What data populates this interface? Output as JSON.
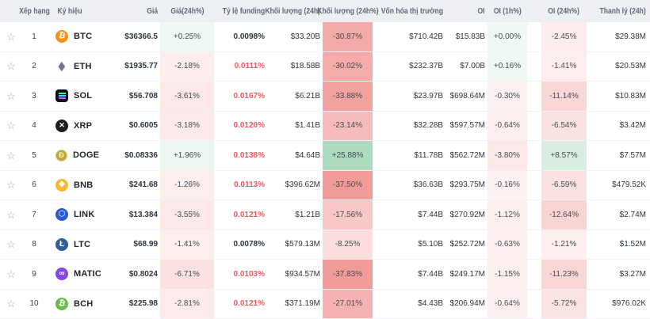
{
  "colors": {
    "header_bg": "#edeff3",
    "header_text": "#5f6a76",
    "body_text": "#2f353d",
    "positive_heat_base": "#229e53",
    "negative_heat_base": "#e53935",
    "funding_alert_text": "#f5565e",
    "row_divider": "#f2f3f6",
    "star_icon": "#a3aab4"
  },
  "funding_alert_threshold": 0.01,
  "header": {
    "columns": [
      {
        "label": ""
      },
      {
        "label": "Xếp hạng"
      },
      {
        "label": "Ký hiệu"
      },
      {
        "label": "Giá"
      },
      {
        "label": "Giá(24h%)"
      },
      {
        "label": "Tỷ lệ funding"
      },
      {
        "label": "Khối lượng (24h)"
      },
      {
        "label": "Khối lượng (24h%)"
      },
      {
        "label": "Vốn hóa thị trường"
      },
      {
        "label": "OI"
      },
      {
        "label": "OI (1h%)"
      },
      {
        "label": ""
      },
      {
        "label": "OI (24h%)"
      },
      {
        "label": "Thanh lý (24h)"
      }
    ]
  },
  "rows": [
    {
      "rank": "1",
      "name": "BTC",
      "icon": {
        "style": "circle",
        "bg": "#f7931a",
        "glyph": "₿",
        "tilt": true
      },
      "price": "$36366.5",
      "chg24": "+0.25%",
      "funding": "0.0098%",
      "vol": "$33.20B",
      "volchg": "-30.87%",
      "mcap": "$710.42B",
      "oi": "$15.83B",
      "oi1h": "+0.00%",
      "oi24": "-2.45%",
      "liq": "$29.38M"
    },
    {
      "rank": "2",
      "name": "ETH",
      "icon": {
        "style": "eth",
        "bg": "transparent",
        "glyph": "◆"
      },
      "price": "$1935.77",
      "chg24": "-2.18%",
      "funding": "0.0111%",
      "vol": "$18.58B",
      "volchg": "-30.02%",
      "mcap": "$232.37B",
      "oi": "$7.00B",
      "oi1h": "+0.16%",
      "oi24": "-1.41%",
      "liq": "$20.53M"
    },
    {
      "rank": "3",
      "name": "SOL",
      "icon": {
        "style": "sol",
        "bg": "#0c0e13",
        "glyph": "="
      },
      "price": "$56.708",
      "chg24": "-3.61%",
      "funding": "0.0167%",
      "vol": "$6.21B",
      "volchg": "-33.88%",
      "mcap": "$23.97B",
      "oi": "$698.64M",
      "oi1h": "-0.30%",
      "oi24": "-11.14%",
      "liq": "$10.83M"
    },
    {
      "rank": "4",
      "name": "XRP",
      "icon": {
        "style": "xrp",
        "bg": "#1c1c21",
        "glyph": "✕"
      },
      "price": "$0.6005",
      "chg24": "-3.18%",
      "funding": "0.0120%",
      "vol": "$1.41B",
      "volchg": "-23.14%",
      "mcap": "$32.28B",
      "oi": "$597.57M",
      "oi1h": "-0.64%",
      "oi24": "-6.54%",
      "liq": "$3.42M"
    },
    {
      "rank": "5",
      "name": "DOGE",
      "icon": {
        "style": "doge",
        "bg": "#c2a633",
        "glyph": "Ð"
      },
      "price": "$0.08336",
      "chg24": "+1.96%",
      "funding": "0.0138%",
      "vol": "$4.64B",
      "volchg": "+25.88%",
      "mcap": "$11.78B",
      "oi": "$562.72M",
      "oi1h": "-3.80%",
      "oi24": "+8.57%",
      "liq": "$7.57M"
    },
    {
      "rank": "6",
      "name": "BNB",
      "icon": {
        "style": "circle",
        "bg": "#f3ba2f",
        "glyph": "❖"
      },
      "price": "$241.68",
      "chg24": "-1.26%",
      "funding": "0.0113%",
      "vol": "$396.62M",
      "volchg": "-37.50%",
      "mcap": "$36.63B",
      "oi": "$293.75M",
      "oi1h": "-0.16%",
      "oi24": "-6.59%",
      "liq": "$479.52K"
    },
    {
      "rank": "7",
      "name": "LINK",
      "icon": {
        "style": "link",
        "bg": "#2a5ada",
        "glyph": "⬡"
      },
      "price": "$13.384",
      "chg24": "-3.55%",
      "funding": "0.0121%",
      "vol": "$1.21B",
      "volchg": "-17.56%",
      "mcap": "$7.44B",
      "oi": "$270.92M",
      "oi1h": "-1.12%",
      "oi24": "-12.64%",
      "liq": "$2.74M"
    },
    {
      "rank": "8",
      "name": "LTC",
      "icon": {
        "style": "circle",
        "bg": "#345d9d",
        "glyph": "Ł"
      },
      "price": "$68.99",
      "chg24": "-1.41%",
      "funding": "0.0078%",
      "vol": "$579.13M",
      "volchg": "-8.25%",
      "mcap": "$5.10B",
      "oi": "$252.72M",
      "oi1h": "-0.63%",
      "oi24": "-1.21%",
      "liq": "$1.52M"
    },
    {
      "rank": "9",
      "name": "MATIC",
      "icon": {
        "style": "circle",
        "bg": "#8247e5",
        "glyph": "∞"
      },
      "price": "$0.8024",
      "chg24": "-6.71%",
      "funding": "0.0103%",
      "vol": "$934.57M",
      "volchg": "-37.83%",
      "mcap": "$7.44B",
      "oi": "$249.17M",
      "oi1h": "-1.15%",
      "oi24": "-11.23%",
      "liq": "$3.27M"
    },
    {
      "rank": "10",
      "name": "BCH",
      "icon": {
        "style": "circle",
        "bg": "#68bd49",
        "glyph": "₿",
        "tilt": true
      },
      "price": "$225.98",
      "chg24": "-2.81%",
      "funding": "0.0121%",
      "vol": "$371.19M",
      "volchg": "-27.01%",
      "mcap": "$4.43B",
      "oi": "$206.94M",
      "oi1h": "-0.64%",
      "oi24": "-5.72%",
      "liq": "$976.02K"
    }
  ]
}
